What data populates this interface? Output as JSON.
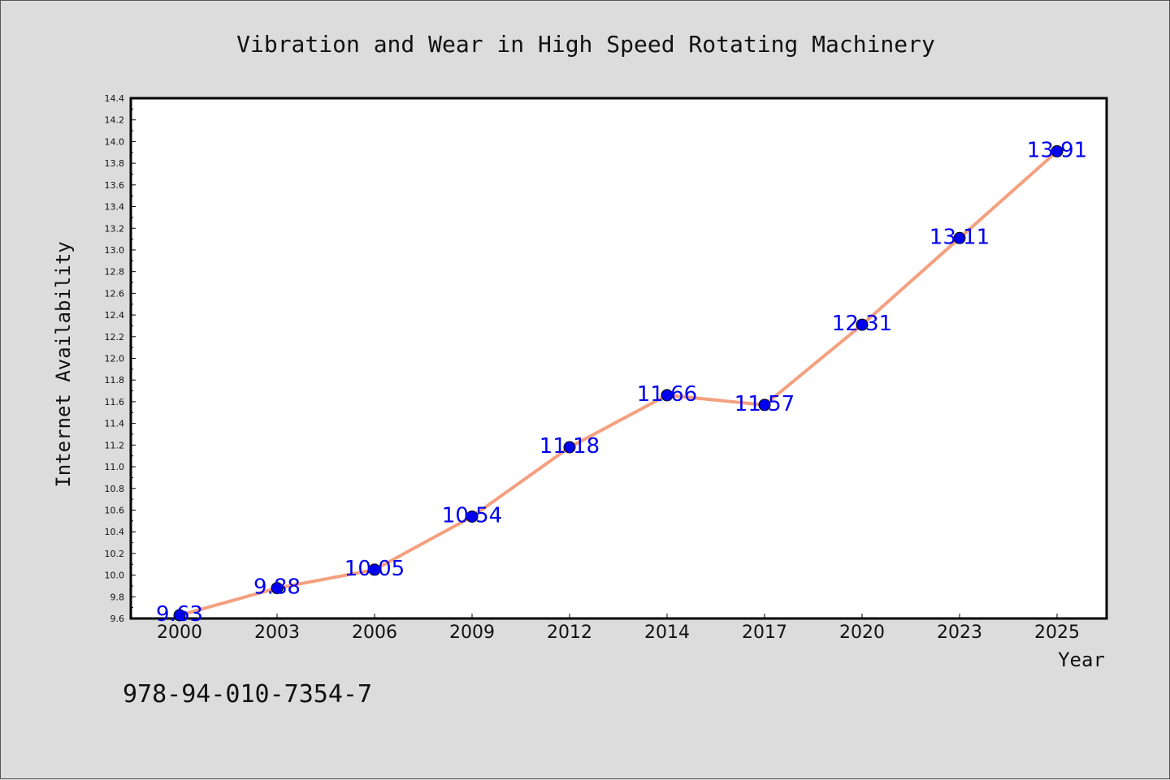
{
  "chart_data": {
    "type": "line",
    "title": "Vibration and Wear in High Speed Rotating Machinery",
    "xlabel": "Year",
    "ylabel": "Internet Availability",
    "categories": [
      "2000",
      "2003",
      "2006",
      "2009",
      "2012",
      "2014",
      "2017",
      "2020",
      "2023",
      "2025"
    ],
    "series": [
      {
        "values": [
          9.63,
          9.88,
          10.05,
          10.54,
          11.18,
          11.66,
          11.57,
          12.31,
          13.11,
          13.91
        ],
        "labels": [
          "9.63",
          "9.88",
          "10.05",
          "10.54",
          "11.18",
          "11.66",
          "11.57",
          "12.31",
          "13.11",
          "13.91"
        ],
        "line_color": "#f4a07f",
        "marker_color": "#0000ee"
      }
    ],
    "ylim": [
      9.6,
      14.4
    ],
    "y_ticks": [
      "9.6",
      "9.8",
      "10.0",
      "10.2",
      "10.4",
      "10.6",
      "10.8",
      "11.0",
      "11.2",
      "11.4",
      "11.6",
      "11.8",
      "12.0",
      "12.2",
      "12.4",
      "12.6",
      "12.8",
      "13.0",
      "13.2",
      "13.4",
      "13.6",
      "13.8",
      "14.0",
      "14.2",
      "14.4"
    ],
    "grid": false,
    "legend": "none",
    "label_color": "#0000ee"
  },
  "footer": {
    "isbn": "978-94-010-7354-7"
  }
}
